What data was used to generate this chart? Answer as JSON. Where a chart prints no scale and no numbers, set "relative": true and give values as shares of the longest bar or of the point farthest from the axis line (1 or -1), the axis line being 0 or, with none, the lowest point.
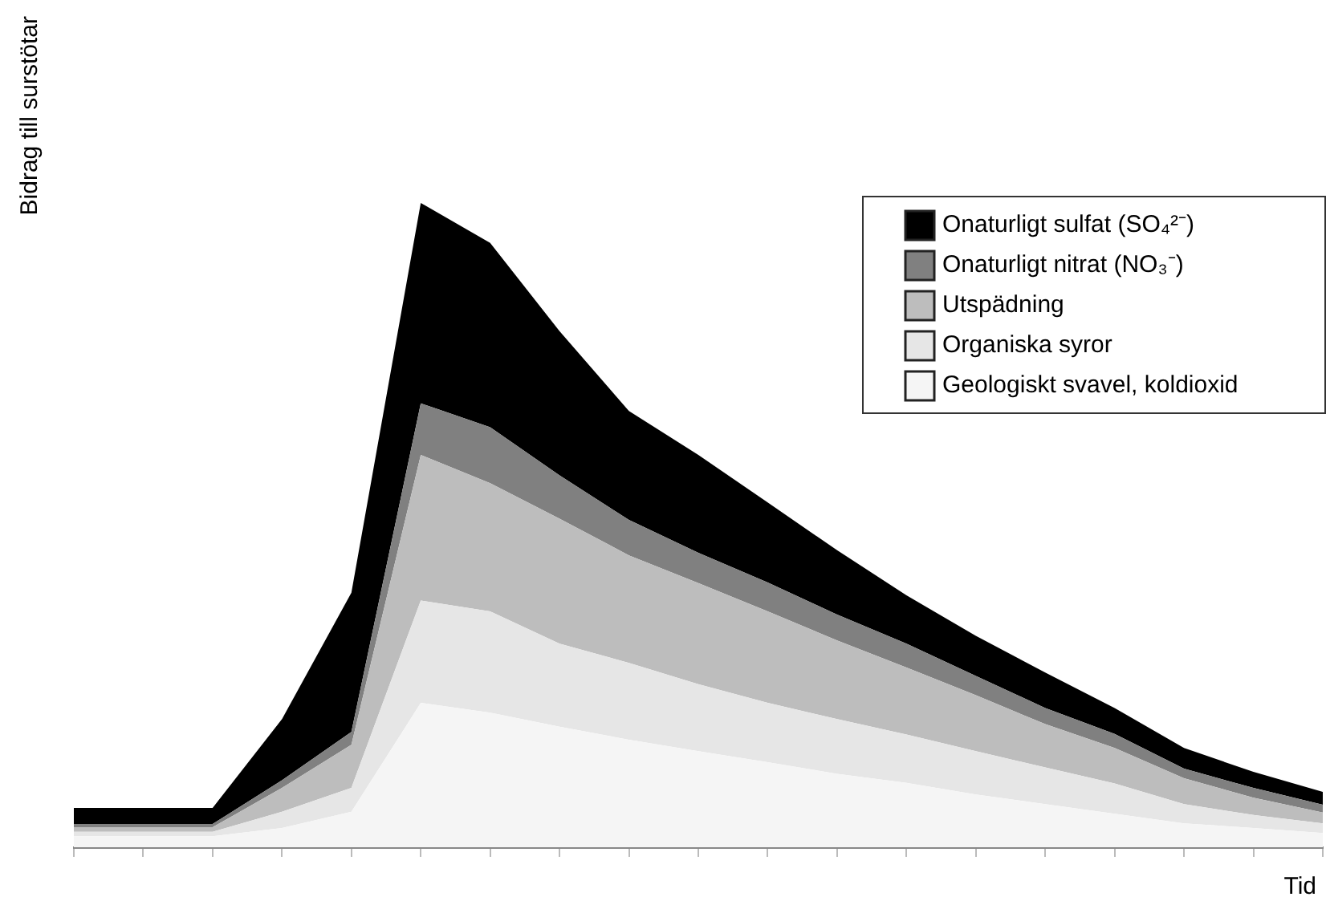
{
  "chart_data": {
    "type": "area",
    "stacked": true,
    "relative": true,
    "xlabel": "Tid",
    "ylabel": "Bidrag till surstötar",
    "legend": "top right",
    "tick_labels": false,
    "categories": [
      null,
      null,
      null,
      null,
      null,
      null,
      null,
      null,
      null,
      null,
      null,
      null,
      null,
      null,
      null,
      null,
      null,
      null,
      null
    ],
    "series": [
      {
        "name": "Geologiskt svavel, koldioxid",
        "color": "#f5f5f5",
        "values": [
          0.017,
          0.017,
          0.017,
          0.03,
          0.055,
          0.224,
          0.209,
          0.187,
          0.167,
          0.149,
          0.132,
          0.114,
          0.1,
          0.082,
          0.067,
          0.052,
          0.037,
          0.03,
          0.022
        ]
      },
      {
        "name": "Organiska syror",
        "color": "#e6e6e6",
        "values": [
          0.007,
          0.007,
          0.007,
          0.025,
          0.037,
          0.159,
          0.157,
          0.129,
          0.119,
          0.104,
          0.092,
          0.085,
          0.075,
          0.067,
          0.057,
          0.047,
          0.03,
          0.02,
          0.015
        ]
      },
      {
        "name": "Utspädning",
        "color": "#bdbdbd",
        "values": [
          0.007,
          0.007,
          0.007,
          0.037,
          0.067,
          0.226,
          0.199,
          0.194,
          0.167,
          0.157,
          0.142,
          0.122,
          0.104,
          0.087,
          0.067,
          0.055,
          0.04,
          0.027,
          0.017
        ]
      },
      {
        "name": "Onaturligt nitrat (NO₃⁻)",
        "color": "#808080",
        "values": [
          0.005,
          0.005,
          0.005,
          0.012,
          0.02,
          0.08,
          0.087,
          0.067,
          0.055,
          0.047,
          0.045,
          0.04,
          0.037,
          0.03,
          0.025,
          0.022,
          0.015,
          0.015,
          0.012
        ]
      },
      {
        "name": "Onaturligt sulfat (SO₄²⁻)",
        "color": "#000000",
        "values": [
          0.025,
          0.025,
          0.025,
          0.095,
          0.216,
          0.311,
          0.286,
          0.224,
          0.169,
          0.152,
          0.124,
          0.1,
          0.075,
          0.062,
          0.055,
          0.04,
          0.032,
          0.025,
          0.02
        ]
      }
    ]
  }
}
